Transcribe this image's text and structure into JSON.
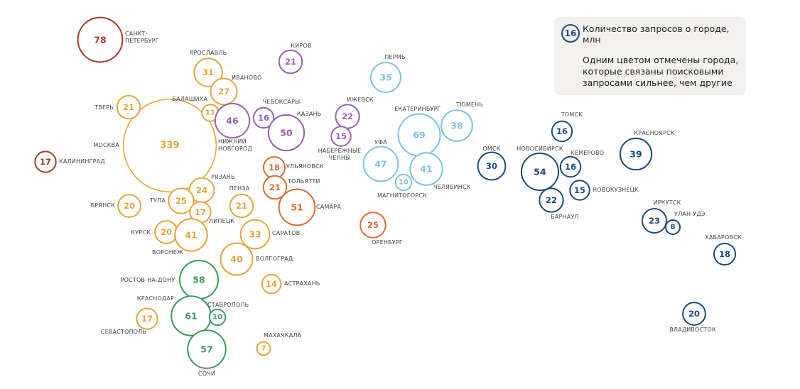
{
  "legend": {
    "sample_value": "16",
    "title": "Количество запросов о городе, млн",
    "note": "Одним цветом отмечены города, которые связаны поисковыми запросами сильнее, чем другие"
  },
  "colors": {
    "darkred": "#a33a2c",
    "orange": "#e6a43a",
    "purple": "#9b5fae",
    "redorange": "#e06a2c",
    "lightblue": "#7cc3df",
    "green": "#3e9a5c",
    "navy": "#1d4a7e"
  },
  "chart_data": {
    "type": "bubble",
    "unit": "млн",
    "points": [
      {
        "city": "САНКТ-ПЕТЕРБУРГ",
        "label_lines": [
          "САНКТ-",
          "ПЕТЕРБУРГ"
        ],
        "value": 78,
        "group": "darkred"
      },
      {
        "city": "КАЛИНИНГРАД",
        "label_lines": [
          "КАЛИНИНГРАД"
        ],
        "value": 17,
        "group": "darkred"
      },
      {
        "city": "МОСКВА",
        "label_lines": [
          "МОСКВА"
        ],
        "value": 339,
        "group": "orange"
      },
      {
        "city": "ЯРОСЛАВЛЬ",
        "label_lines": [
          "ЯРОСЛАВЛЬ"
        ],
        "value": 31,
        "group": "orange"
      },
      {
        "city": "ИВАНОВО",
        "label_lines": [
          "ИВАНОВО"
        ],
        "value": 27,
        "group": "orange"
      },
      {
        "city": "ТВЕРЬ",
        "label_lines": [
          "ТВЕРЬ"
        ],
        "value": 21,
        "group": "orange"
      },
      {
        "city": "БАЛАШИХА",
        "label_lines": [
          "БАЛАШИХА"
        ],
        "value": 11,
        "group": "orange"
      },
      {
        "city": "РЯЗАНЬ",
        "label_lines": [
          "РЯЗАНЬ"
        ],
        "value": 24,
        "group": "orange"
      },
      {
        "city": "ТУЛА",
        "label_lines": [
          "ТУЛА"
        ],
        "value": 25,
        "group": "orange"
      },
      {
        "city": "БРЯНСК",
        "label_lines": [
          "БРЯНСК"
        ],
        "value": 20,
        "group": "orange"
      },
      {
        "city": "ЛИПЕЦК",
        "label_lines": [
          "ЛИПЕЦК"
        ],
        "value": 17,
        "group": "orange"
      },
      {
        "city": "КУРСК",
        "label_lines": [
          "КУРСК"
        ],
        "value": 20,
        "group": "orange"
      },
      {
        "city": "ВОРОНЕЖ",
        "label_lines": [
          "ВОРОНЕЖ"
        ],
        "value": 41,
        "group": "orange"
      },
      {
        "city": "ПЕНЗА",
        "label_lines": [
          "ПЕНЗА"
        ],
        "value": 21,
        "group": "orange"
      },
      {
        "city": "САРАТОВ",
        "label_lines": [
          "САРАТОВ"
        ],
        "value": 33,
        "group": "orange"
      },
      {
        "city": "ВОЛГОГРАД",
        "label_lines": [
          "ВОЛГОГРАД"
        ],
        "value": 40,
        "group": "orange"
      },
      {
        "city": "АСТРАХАНЬ",
        "label_lines": [
          "АСТРАХАНЬ"
        ],
        "value": 14,
        "group": "orange"
      },
      {
        "city": "МАХАЧКАЛА",
        "label_lines": [
          "МАХАЧКАЛА"
        ],
        "value": 7,
        "group": "orange"
      },
      {
        "city": "СЕВАСТОПОЛЬ",
        "label_lines": [
          "СЕВАСТОПОЛЬ"
        ],
        "value": 17,
        "group": "orange"
      },
      {
        "city": "КИРОВ",
        "label_lines": [
          "КИРОВ"
        ],
        "value": 21,
        "group": "purple"
      },
      {
        "city": "ЧЕБОКСАРЫ",
        "label_lines": [
          "ЧЕБОКСАРЫ"
        ],
        "value": 16,
        "group": "purple"
      },
      {
        "city": "НИЖНИЙ НОВГОРОД",
        "label_lines": [
          "НИЖНИЙ",
          "НОВГОРОД"
        ],
        "value": 46,
        "group": "purple"
      },
      {
        "city": "КАЗАНЬ",
        "label_lines": [
          "КАЗАНЬ"
        ],
        "value": 50,
        "group": "purple"
      },
      {
        "city": "ИЖЕВСК",
        "label_lines": [
          "ИЖЕВСК"
        ],
        "value": 22,
        "group": "purple"
      },
      {
        "city": "НАБЕРЕЖНЫЕ ЧЕЛНЫ",
        "label_lines": [
          "НАБЕРЕЖНЫЕ",
          "ЧЕЛНЫ"
        ],
        "value": 15,
        "group": "purple"
      },
      {
        "city": "УЛЬЯНОВСК",
        "label_lines": [
          "УЛЬЯНОВСК"
        ],
        "value": 18,
        "group": "redorange"
      },
      {
        "city": "ТОЛЬЯТТИ",
        "label_lines": [
          "ТОЛЬЯТТИ"
        ],
        "value": 21,
        "group": "redorange"
      },
      {
        "city": "САМАРА",
        "label_lines": [
          "САМАРА"
        ],
        "value": 51,
        "group": "redorange"
      },
      {
        "city": "ОРЕНБУРГ",
        "label_lines": [
          "ОРЕНБУРГ"
        ],
        "value": 25,
        "group": "redorange"
      },
      {
        "city": "ПЕРМЬ",
        "label_lines": [
          "ПЕРМЬ"
        ],
        "value": 35,
        "group": "lightblue"
      },
      {
        "city": "ЕКАТЕРИНБУРГ",
        "label_lines": [
          "ЕКАТЕРИНБУРГ"
        ],
        "value": 69,
        "group": "lightblue"
      },
      {
        "city": "ТЮМЕНЬ",
        "label_lines": [
          "ТЮМЕНЬ"
        ],
        "value": 38,
        "group": "lightblue"
      },
      {
        "city": "УФА",
        "label_lines": [
          "УФА"
        ],
        "value": 47,
        "group": "lightblue"
      },
      {
        "city": "ЧЕЛЯБИНСК",
        "label_lines": [
          "ЧЕЛЯБИНСК"
        ],
        "value": 41,
        "group": "lightblue"
      },
      {
        "city": "МАГНИТОГОРСК",
        "label_lines": [
          "МАГНИТОГОРСК"
        ],
        "value": 10,
        "group": "lightblue"
      },
      {
        "city": "РОСТОВ-НА-ДОНУ",
        "label_lines": [
          "РОСТОВ-НА-ДОНУ"
        ],
        "value": 58,
        "group": "green"
      },
      {
        "city": "КРАСНОДАР",
        "label_lines": [
          "КРАСНОДАР"
        ],
        "value": 61,
        "group": "green"
      },
      {
        "city": "СТАВРОПОЛЬ",
        "label_lines": [
          "СТАВРОПОЛЬ"
        ],
        "value": 10,
        "group": "green"
      },
      {
        "city": "СОЧИ",
        "label_lines": [
          "СОЧИ"
        ],
        "value": 57,
        "group": "green"
      },
      {
        "city": "ОМСК",
        "label_lines": [
          "ОМСК"
        ],
        "value": 30,
        "group": "navy"
      },
      {
        "city": "НОВОСИБИРСК",
        "label_lines": [
          "НОВОСИБИРСК"
        ],
        "value": 54,
        "group": "navy"
      },
      {
        "city": "ТОМСК",
        "label_lines": [
          "ТОМСК"
        ],
        "value": 16,
        "group": "navy"
      },
      {
        "city": "КЕМЕРОВО",
        "label_lines": [
          "КЕМЕРОВО"
        ],
        "value": 16,
        "group": "navy"
      },
      {
        "city": "НОВОКУЗНЕЦК",
        "label_lines": [
          "НОВОКУЗНЕЦК"
        ],
        "value": 15,
        "group": "navy"
      },
      {
        "city": "БАРНАУЛ",
        "label_lines": [
          "БАРНАУЛ"
        ],
        "value": 22,
        "group": "navy"
      },
      {
        "city": "КРАСНОЯРСК",
        "label_lines": [
          "КРАСНОЯРСК"
        ],
        "value": 39,
        "group": "navy"
      },
      {
        "city": "ИРКУТСК",
        "label_lines": [
          "ИРКУТСК"
        ],
        "value": 23,
        "group": "navy"
      },
      {
        "city": "УЛАН-УДЭ",
        "label_lines": [
          "УЛАН-УДЭ"
        ],
        "value": 8,
        "group": "navy"
      },
      {
        "city": "ХАБАРОВСК",
        "label_lines": [
          "ХАБАРОВСК"
        ],
        "value": 18,
        "group": "navy"
      },
      {
        "city": "ВЛАДИВОСТОК",
        "label_lines": [
          "ВЛАДИВОСТОК"
        ],
        "value": 20,
        "group": "navy"
      }
    ]
  }
}
